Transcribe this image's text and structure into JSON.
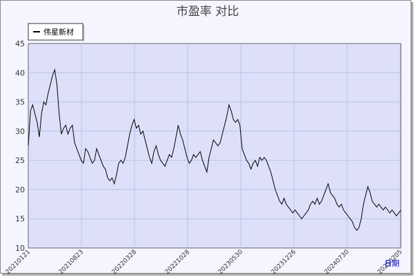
{
  "chart_data": {
    "type": "line",
    "title": "市盈率  对比",
    "legend": [
      "伟星新材"
    ],
    "ylim": [
      10,
      45
    ],
    "yticks": [
      10,
      15,
      20,
      25,
      30,
      35,
      40,
      45
    ],
    "xticks": [
      "20210121",
      "20210823",
      "20220328",
      "20221028",
      "20230530",
      "20231226",
      "20240730",
      "20250205"
    ],
    "grid": true,
    "series": [
      {
        "name": "伟星新材",
        "values": [
          27.5,
          33.5,
          34.5,
          33.0,
          31.5,
          29.0,
          33.0,
          35.0,
          34.5,
          36.5,
          38.0,
          39.5,
          40.5,
          38.0,
          33.0,
          29.5,
          30.5,
          31.0,
          29.5,
          30.5,
          31.0,
          28.0,
          27.0,
          26.0,
          25.0,
          24.5,
          27.0,
          26.5,
          25.5,
          24.5,
          25.0,
          27.0,
          26.0,
          25.0,
          24.0,
          23.5,
          22.0,
          21.5,
          22.0,
          21.0,
          22.5,
          24.5,
          25.0,
          24.5,
          25.5,
          27.5,
          29.5,
          31.0,
          32.0,
          30.5,
          31.0,
          29.5,
          30.0,
          28.5,
          27.0,
          25.5,
          24.5,
          26.5,
          27.5,
          26.0,
          25.0,
          24.5,
          24.0,
          25.0,
          26.0,
          25.5,
          27.0,
          29.0,
          31.0,
          29.5,
          28.5,
          27.0,
          25.5,
          24.5,
          25.0,
          26.0,
          25.5,
          26.0,
          26.5,
          25.0,
          24.0,
          23.0,
          25.5,
          27.0,
          28.5,
          28.0,
          27.5,
          28.0,
          29.5,
          31.0,
          32.5,
          34.5,
          33.5,
          32.0,
          31.5,
          32.0,
          31.0,
          27.0,
          26.0,
          25.0,
          24.5,
          23.5,
          24.5,
          25.0,
          24.0,
          25.5,
          25.0,
          25.5,
          25.0,
          24.0,
          23.0,
          21.5,
          20.0,
          19.0,
          18.0,
          17.5,
          18.5,
          17.5,
          17.0,
          16.5,
          16.0,
          16.5,
          16.0,
          15.5,
          15.0,
          15.5,
          16.0,
          16.5,
          17.5,
          18.0,
          17.5,
          18.5,
          17.5,
          18.0,
          19.0,
          20.0,
          21.0,
          19.5,
          19.0,
          18.5,
          17.5,
          17.0,
          17.5,
          16.5,
          16.0,
          15.5,
          15.0,
          14.5,
          13.5,
          13.0,
          13.5,
          15.0,
          17.5,
          19.0,
          20.5,
          19.5,
          18.0,
          17.5,
          17.0,
          17.5,
          17.0,
          16.5,
          17.0,
          16.5,
          16.0,
          16.5,
          16.0,
          15.5,
          16.0,
          16.5
        ]
      }
    ]
  },
  "links": {
    "period_label": "日期"
  }
}
